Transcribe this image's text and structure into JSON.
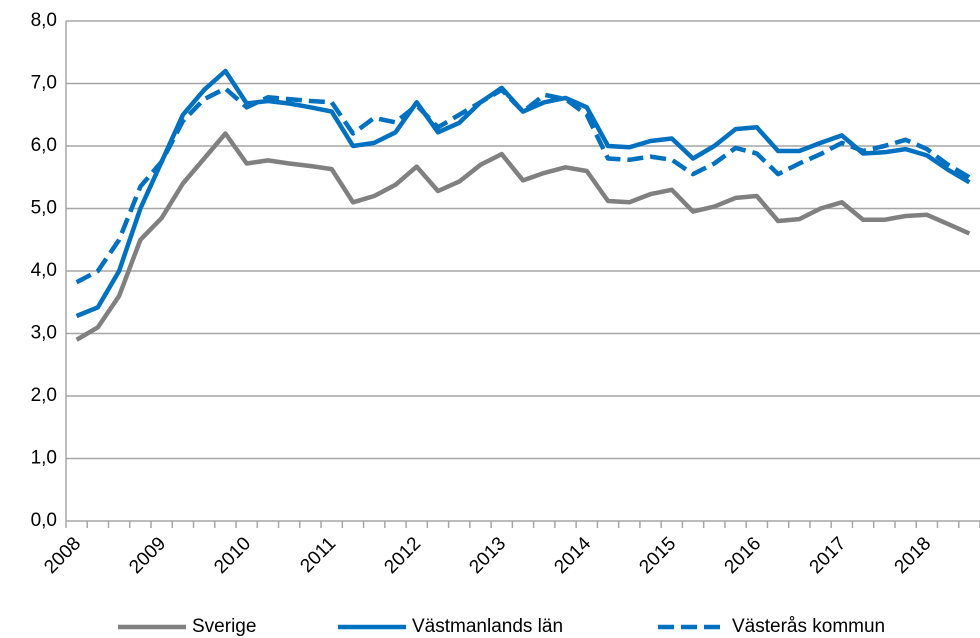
{
  "chart_data": {
    "type": "line",
    "categories": [
      "2008",
      null,
      null,
      null,
      "2009",
      null,
      null,
      null,
      "2010",
      null,
      null,
      null,
      "2011",
      null,
      null,
      null,
      "2012",
      null,
      null,
      null,
      "2013",
      null,
      null,
      null,
      "2014",
      null,
      null,
      null,
      "2015",
      null,
      null,
      null,
      "2016",
      null,
      null,
      null,
      "2017",
      null,
      null,
      null,
      "2018",
      null,
      null
    ],
    "series": [
      {
        "name": "Sverige",
        "color": "#808080",
        "dash": false,
        "values": [
          2.9,
          3.1,
          3.6,
          4.5,
          4.85,
          5.4,
          5.8,
          6.2,
          5.72,
          5.77,
          5.72,
          5.68,
          5.63,
          5.1,
          5.2,
          5.38,
          5.67,
          5.28,
          5.43,
          5.7,
          5.87,
          5.45,
          5.57,
          5.66,
          5.6,
          5.12,
          5.1,
          5.23,
          5.3,
          4.95,
          5.03,
          5.17,
          5.2,
          4.8,
          4.83,
          5.0,
          5.1,
          4.82,
          4.82,
          4.88,
          4.9,
          4.75,
          4.6
        ]
      },
      {
        "name": "Västmanlands län",
        "color": "#0070c0",
        "dash": false,
        "values": [
          3.28,
          3.42,
          4.0,
          5.0,
          5.75,
          6.5,
          6.9,
          7.2,
          6.68,
          6.72,
          6.68,
          6.62,
          6.55,
          6.0,
          6.05,
          6.22,
          6.7,
          6.22,
          6.37,
          6.7,
          6.93,
          6.55,
          6.7,
          6.77,
          6.62,
          6.0,
          5.98,
          6.08,
          6.12,
          5.8,
          6.0,
          6.27,
          6.3,
          5.92,
          5.92,
          6.05,
          6.17,
          5.88,
          5.9,
          5.95,
          5.85,
          5.62,
          5.42
        ]
      },
      {
        "name": "Västerås kommun",
        "color": "#0070c0",
        "dash": true,
        "values": [
          3.82,
          4.0,
          4.5,
          5.35,
          5.75,
          6.4,
          6.75,
          6.92,
          6.62,
          6.78,
          6.75,
          6.72,
          6.7,
          6.2,
          6.45,
          6.38,
          6.65,
          6.3,
          6.5,
          6.7,
          6.9,
          6.55,
          6.82,
          6.75,
          6.5,
          5.8,
          5.78,
          5.83,
          5.78,
          5.55,
          5.72,
          5.97,
          5.88,
          5.55,
          5.72,
          5.87,
          6.05,
          5.92,
          6.0,
          6.1,
          5.95,
          5.7,
          5.5
        ]
      }
    ],
    "ylim": [
      0,
      8
    ],
    "yticks": [
      {
        "value": 0,
        "label": "0,0"
      },
      {
        "value": 1,
        "label": "1,0"
      },
      {
        "value": 2,
        "label": "2,0"
      },
      {
        "value": 3,
        "label": "3,0"
      },
      {
        "value": 4,
        "label": "4,0"
      },
      {
        "value": 5,
        "label": "5,0"
      },
      {
        "value": 6,
        "label": "6,0"
      },
      {
        "value": 7,
        "label": "7,0"
      },
      {
        "value": 8,
        "label": "8,0"
      }
    ],
    "grid": true,
    "legend": "bottom"
  }
}
